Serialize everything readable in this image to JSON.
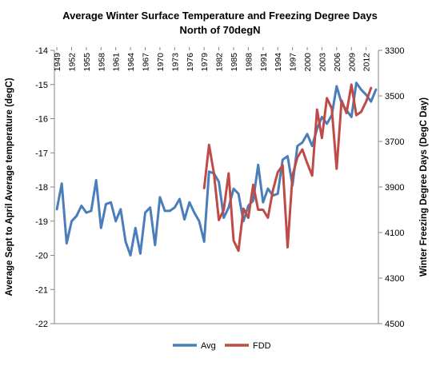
{
  "chart_data": {
    "type": "line",
    "title": "Average Winter Surface Temperature and Freezing Degree Days",
    "subtitle": "North of 70degN",
    "ylabel_left": "Average Sept to April Average temperature (degC)",
    "ylabel_right": "Winter Freezing Degree Days (DegC Day)",
    "ylim_left": [
      -22,
      -14
    ],
    "yticks_left": [
      -14,
      -15,
      -16,
      -17,
      -18,
      -19,
      -20,
      -21,
      -22
    ],
    "ylim_right": [
      4500,
      3300
    ],
    "yticks_right": [
      3300,
      3500,
      3700,
      3900,
      4100,
      4300,
      4500
    ],
    "right_axis_inverted": true,
    "x_start": 1949,
    "x_end": 2014,
    "x_tick_labels": [
      "1949",
      "1952",
      "1955",
      "1958",
      "1961",
      "1964",
      "1967",
      "1970",
      "1973",
      "1976",
      "1979",
      "1982",
      "1985",
      "1988",
      "1991",
      "1994",
      "1997",
      "2000",
      "2003",
      "2006",
      "2009",
      "2012"
    ],
    "grid": false,
    "legend_position": "bottom",
    "series": [
      {
        "name": "Avg",
        "axis": "left",
        "color": "#4a7ebb",
        "x": [
          1949,
          1950,
          1951,
          1952,
          1953,
          1954,
          1955,
          1956,
          1957,
          1958,
          1959,
          1960,
          1961,
          1962,
          1963,
          1964,
          1965,
          1966,
          1967,
          1968,
          1969,
          1970,
          1971,
          1972,
          1973,
          1974,
          1975,
          1976,
          1977,
          1978,
          1979,
          1980,
          1981,
          1982,
          1983,
          1984,
          1985,
          1986,
          1987,
          1988,
          1989,
          1990,
          1991,
          1992,
          1993,
          1994,
          1995,
          1996,
          1997,
          1998,
          1999,
          2000,
          2001,
          2002,
          2003,
          2004,
          2005,
          2006,
          2007,
          2008,
          2009,
          2010,
          2011,
          2012,
          2013,
          2014
        ],
        "values": [
          -18.65,
          -17.9,
          -19.65,
          -19.0,
          -18.85,
          -18.55,
          -18.75,
          -18.7,
          -17.8,
          -19.2,
          -18.5,
          -18.45,
          -19.0,
          -18.65,
          -19.6,
          -20.0,
          -19.2,
          -19.95,
          -18.75,
          -18.6,
          -19.7,
          -18.3,
          -18.7,
          -18.7,
          -18.6,
          -18.35,
          -18.95,
          -18.45,
          -18.75,
          -19.0,
          -19.6,
          -17.55,
          -17.6,
          -17.85,
          -18.9,
          -18.6,
          -18.05,
          -18.2,
          -19.0,
          -18.55,
          -18.4,
          -17.35,
          -18.45,
          -18.05,
          -18.25,
          -18.2,
          -17.2,
          -17.1,
          -17.95,
          -16.8,
          -16.7,
          -16.45,
          -16.8,
          -16.3,
          -15.95,
          -16.15,
          -15.9,
          -15.05,
          -15.55,
          -15.75,
          -15.95,
          -14.95,
          -15.15,
          -15.3,
          -15.5,
          -15.15
        ]
      },
      {
        "name": "FDD",
        "axis": "right",
        "color": "#be4b48",
        "x": [
          1979,
          1980,
          1981,
          1982,
          1983,
          1984,
          1985,
          1986,
          1987,
          1988,
          1989,
          1990,
          1991,
          1992,
          1993,
          1994,
          1995,
          1996,
          1997,
          1998,
          1999,
          2000,
          2001,
          2002,
          2003,
          2004,
          2005,
          2006,
          2007,
          2008,
          2009,
          2010,
          2011,
          2012,
          2013
        ],
        "values": [
          3905,
          3715,
          3840,
          4045,
          4000,
          3840,
          4135,
          4180,
          3995,
          4035,
          3890,
          4000,
          4000,
          4035,
          3915,
          3835,
          3805,
          4165,
          3850,
          3770,
          3735,
          3795,
          3850,
          3560,
          3685,
          3510,
          3555,
          3820,
          3520,
          3575,
          3450,
          3585,
          3570,
          3525,
          3465
        ]
      }
    ]
  }
}
